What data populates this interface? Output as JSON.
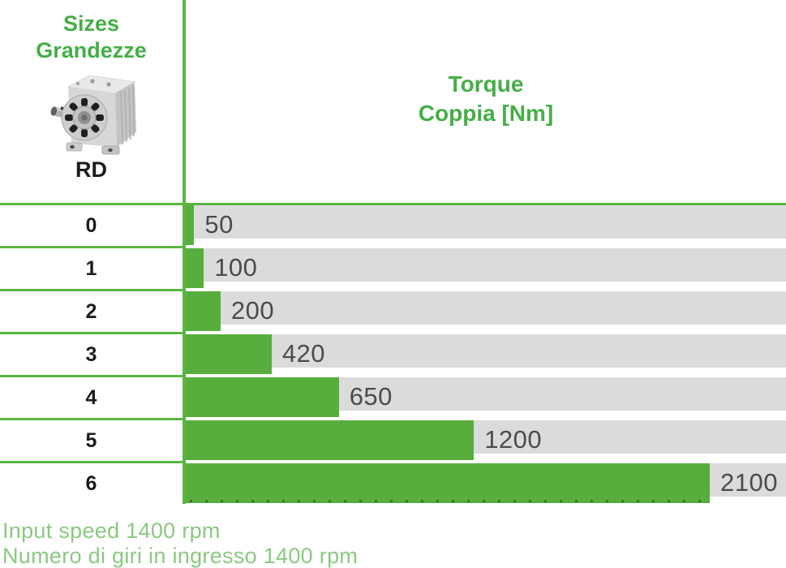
{
  "header": {
    "sizes_title_line1": "Sizes",
    "sizes_title_line2": "Grandezze",
    "product_image_icon": "rd-gearbox-photo",
    "product_code": "RD",
    "torque_title_line1": "Torque",
    "torque_title_line2": "Coppia [Nm]"
  },
  "chart_data": {
    "type": "bar",
    "orientation": "horizontal",
    "title": "Torque / Coppia [Nm]",
    "category_axis_title": "Sizes / Grandezze (RD)",
    "unit": "Nm",
    "categories": [
      "0",
      "1",
      "2",
      "3",
      "4",
      "5",
      "6"
    ],
    "values": [
      50,
      100,
      200,
      420,
      650,
      1200,
      2100
    ],
    "value_labels": [
      "50",
      "100",
      "200",
      "420",
      "650",
      "1200",
      "2100"
    ],
    "bar_length_pct_of_track": [
      1.4,
      3.0,
      5.8,
      14.3,
      25.5,
      48.0,
      87.3
    ],
    "grid": false,
    "legend": false,
    "bar_color": "#58ae3c",
    "track_color": "#dbdbdb"
  },
  "footer": {
    "line1": "Input speed 1400 rpm",
    "line2": "Numero di giri in ingresso 1400 rpm"
  },
  "colors": {
    "title_green": "#45ae47",
    "bar_green": "#58ae3c",
    "line_green": "#5cb344",
    "footer_green": "#8cc882",
    "track_gray": "#dbdbdb",
    "value_text": "#4b4b4d",
    "label_black": "#1c1c1c"
  }
}
